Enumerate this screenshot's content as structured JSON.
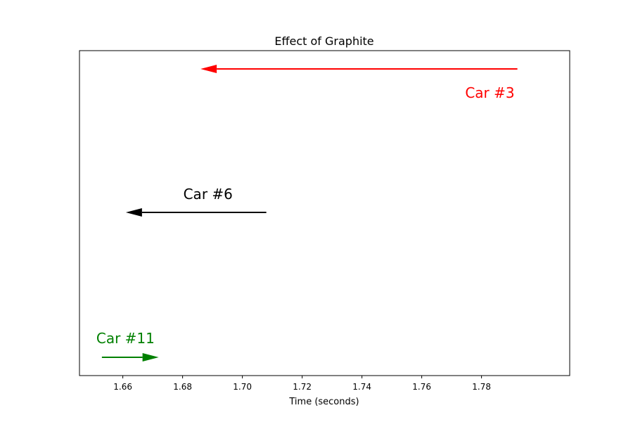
{
  "chart_data": {
    "type": "arrow",
    "title": "Effect of Graphite",
    "xlabel": "Time (seconds)",
    "ylabel": "",
    "xlim": [
      1.6455,
      1.8095
    ],
    "ylim": [
      0,
      1
    ],
    "x_ticks": [
      "1.66",
      "1.68",
      "1.70",
      "1.72",
      "1.74",
      "1.76",
      "1.78"
    ],
    "y_ticks": [],
    "grid": false,
    "series": [
      {
        "name": "Car #3",
        "x_start": 1.792,
        "x_end": 1.686,
        "color": "#ff0000"
      },
      {
        "name": "Car #6",
        "x_start": 1.708,
        "x_end": 1.661,
        "color": "#000000"
      },
      {
        "name": "Car #11",
        "x_start": 1.653,
        "x_end": 1.672,
        "color": "#008000"
      }
    ]
  }
}
